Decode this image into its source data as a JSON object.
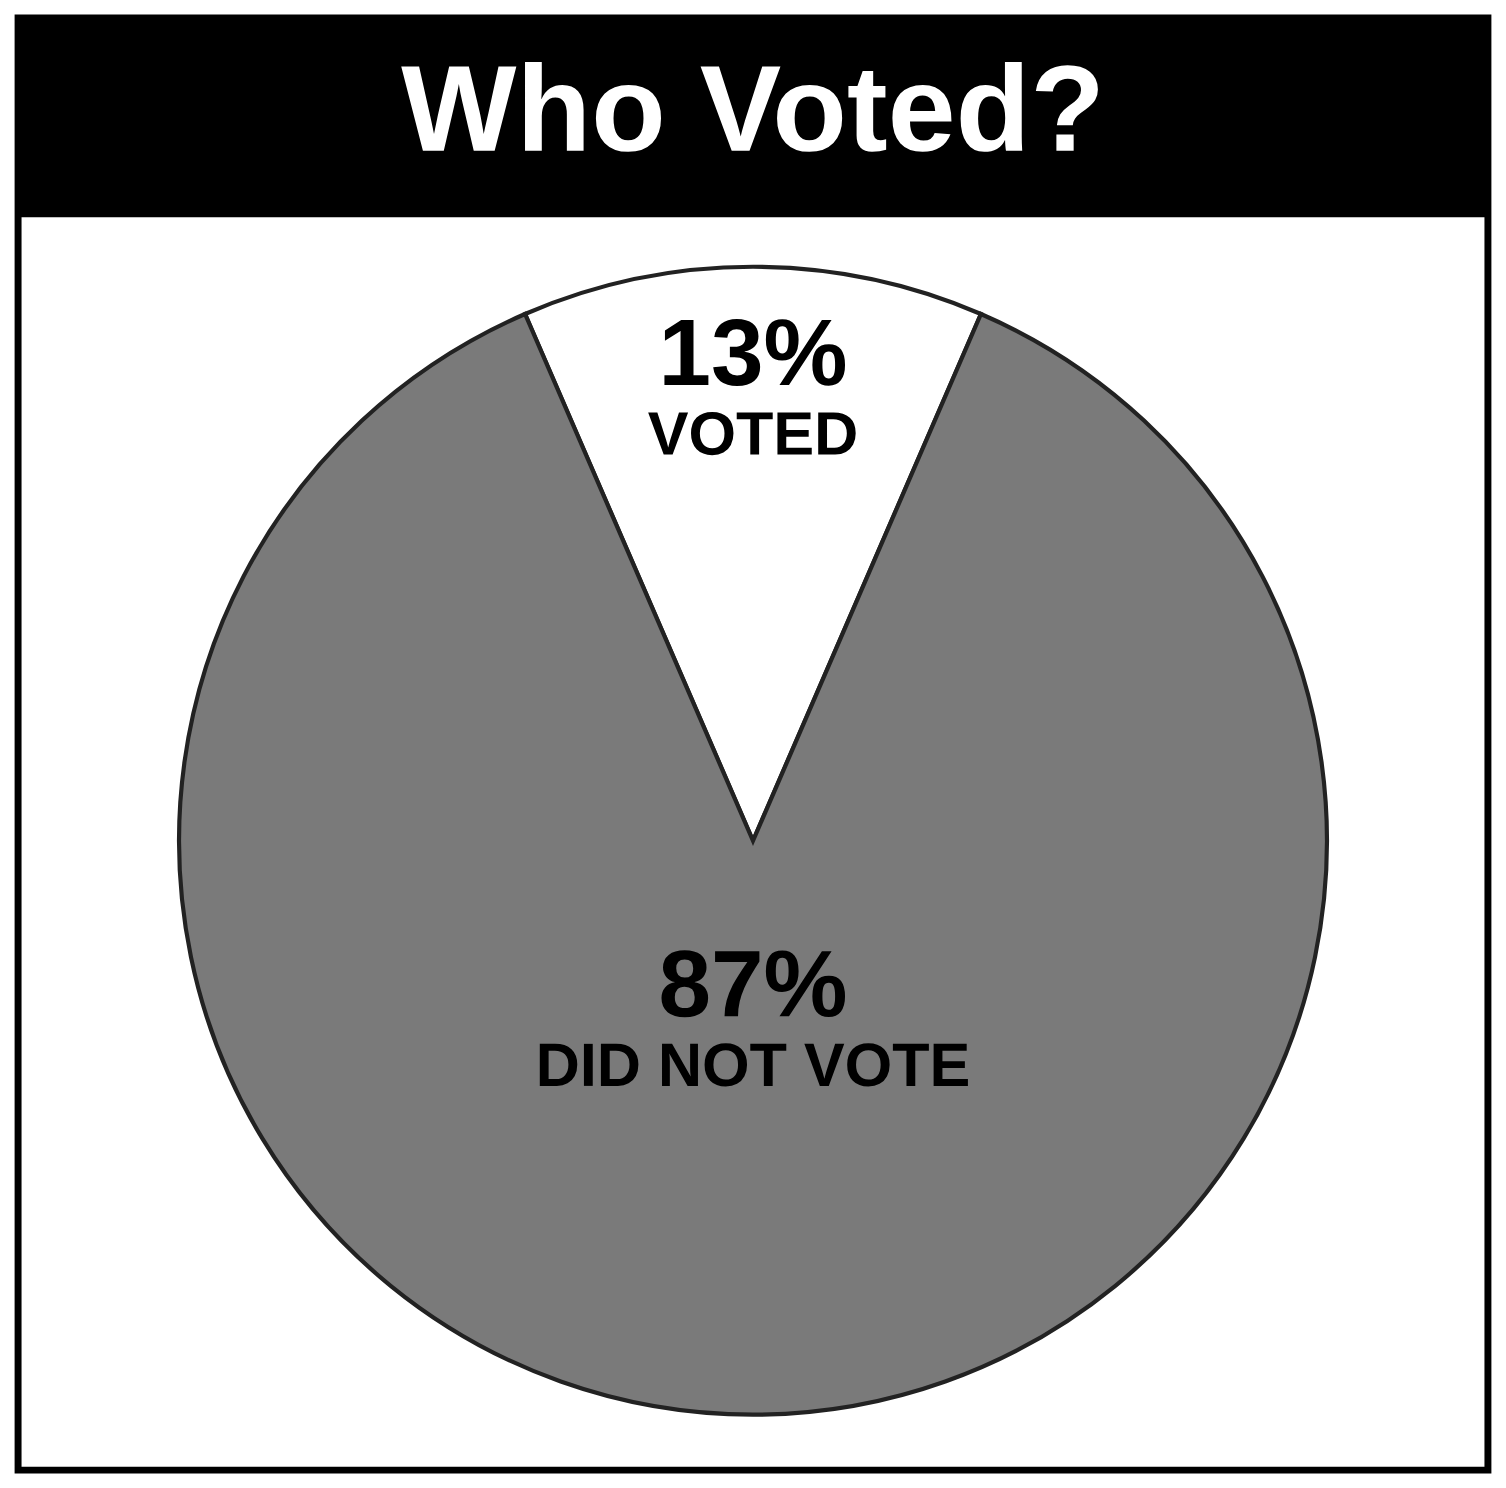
{
  "chart_data": {
    "type": "pie",
    "title": "Who Voted?",
    "categories": [
      "VOTED",
      "DID NOT VOTE"
    ],
    "values": [
      13,
      87
    ],
    "colors": [
      "#ffffff",
      "#7a7a7a"
    ],
    "value_labels": [
      "13%",
      "87%"
    ]
  }
}
